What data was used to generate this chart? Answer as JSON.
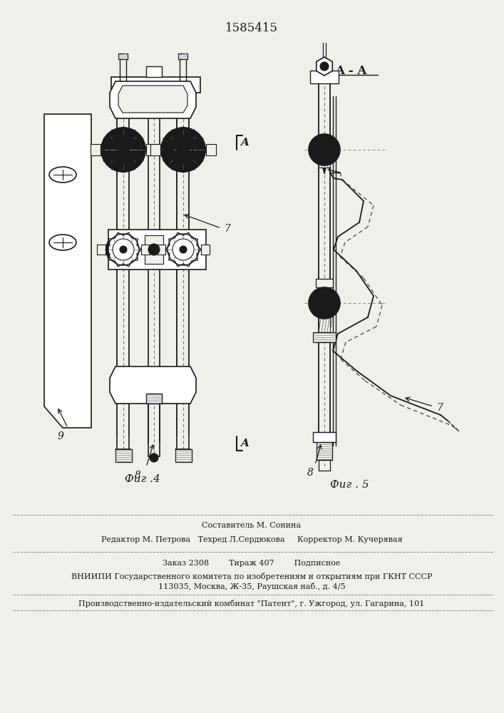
{
  "patent_number": "1585415",
  "fig4_label": "Фиг .4",
  "fig5_label": "Фиг . 5",
  "section_label": "A - A",
  "cut_label_A": "A",
  "label_7": "7",
  "label_8": "8",
  "label_9": "9",
  "editor_line": "Редактор М. Петрова   Техред Л.Сердюкова     Корректор М. Кучерявая",
  "composer_line": "Составитель М. Сонина",
  "order_line": "Заказ 2308        Тираж 407        Подписное",
  "vniip_line1": "ВНИИПИ Государственного комитета по изобретениям и открытиям при ГКНТ СССР",
  "vniip_line2": "113035, Москва, Ж-35, Раушская наб., д. 4/5",
  "patent_line": "Производственно-издательский комбинат \"Патент\", г. Ужгород, ул. Гагарина, 101",
  "bg_color": "#f0f0eb",
  "line_color": "#1a1a1a"
}
